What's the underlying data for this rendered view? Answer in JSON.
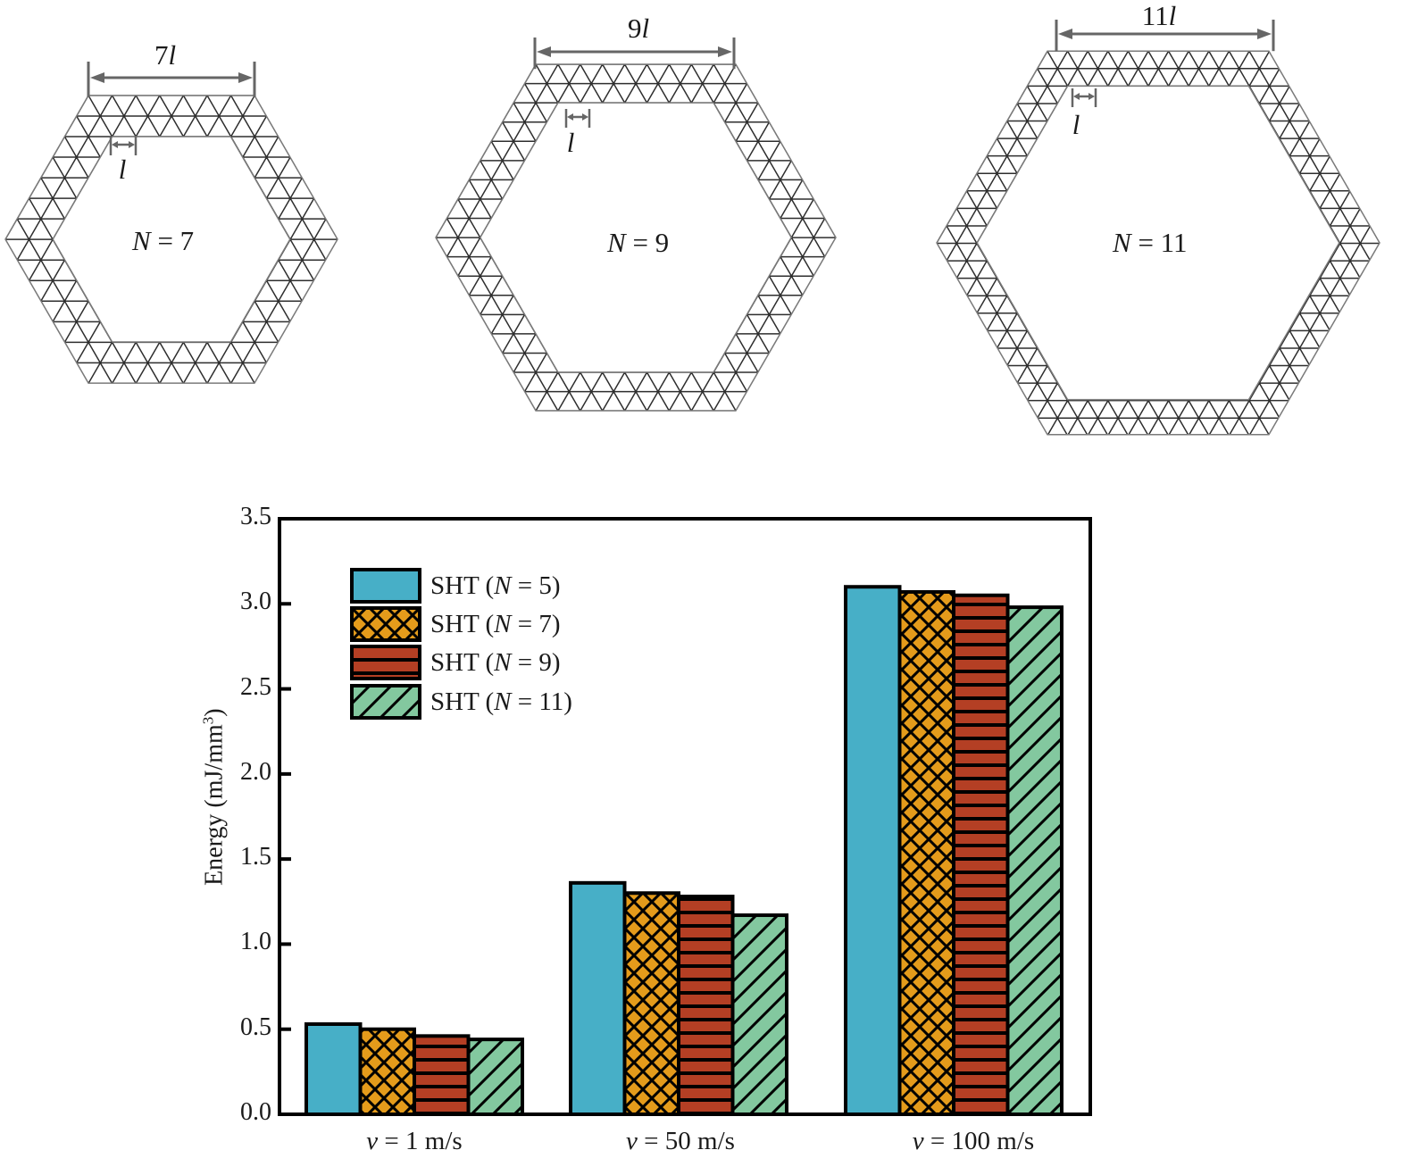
{
  "panels": [
    {
      "id": "n7",
      "n_label_var": "N",
      "n_label_rest": " = 7",
      "dim_num": "7",
      "dim_var": "l",
      "unit_label": "l"
    },
    {
      "id": "n9",
      "n_label_var": "N",
      "n_label_rest": " = 9",
      "dim_num": "9",
      "dim_var": "l",
      "unit_label": "l"
    },
    {
      "id": "n11",
      "n_label_var": "N",
      "n_label_rest": " = 11",
      "dim_num": "11",
      "dim_var": "l",
      "unit_label": "l"
    }
  ],
  "chart_data": {
    "type": "bar",
    "title": "",
    "xlabel": "",
    "ylabel": "Energy (mJ/mm³)",
    "ylabel_main": "Energy (mJ/mm",
    "ylabel_sup": "3",
    "ylabel_close": ")",
    "ylim": [
      0,
      3.5
    ],
    "yticks": [
      "0.0",
      "0.5",
      "1.0",
      "1.5",
      "2.0",
      "2.5",
      "3.0",
      "3.5"
    ],
    "grid": false,
    "legend_position": "upper-left",
    "categories": [
      "v = 1 m/s",
      "v = 50 m/s",
      "v = 100 m/s"
    ],
    "category_parts": [
      {
        "var": "v",
        "rest": " = 1 m/s"
      },
      {
        "var": "v",
        "rest": " = 50 m/s"
      },
      {
        "var": "v",
        "rest": " = 100 m/s"
      }
    ],
    "series": [
      {
        "name": "SHT (N = 5)",
        "prefix": "SHT (",
        "var": "N",
        "suffix": " = 5)",
        "color": "#47afc7",
        "pattern": "solid",
        "values": [
          0.53,
          1.36,
          3.1
        ]
      },
      {
        "name": "SHT (N = 7)",
        "prefix": "SHT (",
        "var": "N",
        "suffix": " = 7)",
        "color": "#e49b1b",
        "pattern": "crosshatch",
        "values": [
          0.5,
          1.3,
          3.07
        ]
      },
      {
        "name": "SHT (N = 9)",
        "prefix": "SHT (",
        "var": "N",
        "suffix": " = 9)",
        "color": "#b43f24",
        "pattern": "horizontal",
        "values": [
          0.46,
          1.28,
          3.05
        ]
      },
      {
        "name": "SHT (N = 11)",
        "prefix": "SHT (",
        "var": "N",
        "suffix": " = 11)",
        "color": "#83c89f",
        "pattern": "diagonal",
        "values": [
          0.44,
          1.17,
          2.98
        ]
      }
    ]
  }
}
